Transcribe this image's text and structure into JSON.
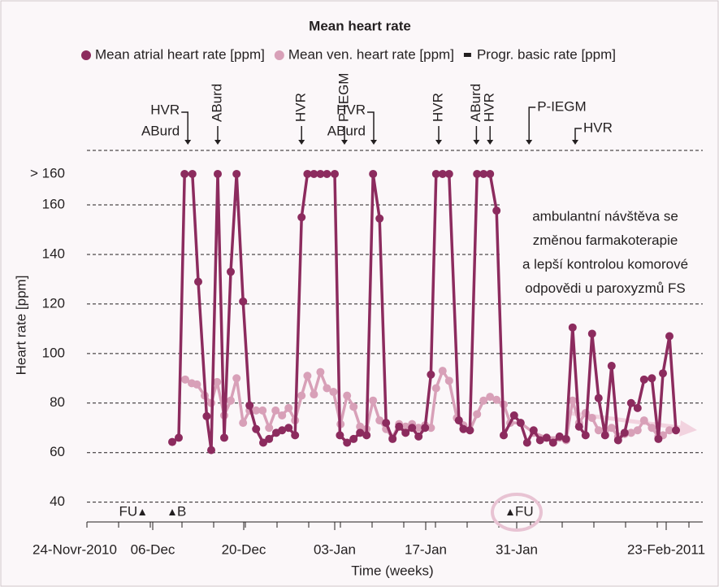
{
  "chart_data": {
    "type": "line",
    "title": "Mean heart rate",
    "y_label": "Heart rate [ppm]",
    "x_label": "Time (weeks)",
    "xlim": [
      0,
      97
    ],
    "ylim": [
      32,
      182
    ],
    "xticks": [
      {
        "value": 0,
        "label": "24-Novr-2010"
      },
      {
        "value": 12,
        "label": "06-Dec"
      },
      {
        "value": 26,
        "label": "20-Dec"
      },
      {
        "value": 40,
        "label": "03-Jan"
      },
      {
        "value": 54,
        "label": "17-Jan"
      },
      {
        "value": 68,
        "label": "31-Jan"
      },
      {
        "value": 91,
        "label": "23-Feb-2011"
      }
    ],
    "yticks": [
      40,
      60,
      80,
      100,
      120,
      140,
      160,
      {
        "value": 172.5,
        "label": "> 160"
      }
    ],
    "grid": true,
    "series": [
      {
        "name": "Mean atrial heart rate [ppm]",
        "color": "#8c2b5e",
        "x": [
          15,
          16,
          16.9,
          18.1,
          19,
          20.3,
          21,
          22,
          23,
          24,
          24.9,
          25.9,
          26.9,
          27.9,
          29,
          29.9,
          31,
          31.9,
          32.9,
          33.9,
          34.9,
          35.8,
          36.8,
          37.8,
          38.8,
          40,
          40.8,
          41.9,
          42.9,
          43.9,
          44.9,
          45.9,
          46.9,
          47.9,
          48.9,
          49.9,
          50.9,
          51.9,
          52.9,
          53.9,
          54.8,
          55.6,
          56.6,
          57.6,
          59.1,
          59.8,
          60.8,
          61.9,
          62.9,
          63.9,
          64.9,
          66,
          67.6,
          68.6,
          69.6,
          70.6,
          71.6,
          72.6,
          73.6,
          74.6,
          75.6,
          76.6,
          77.6,
          78.6,
          79.6,
          80.6,
          81.6,
          82.6,
          83.6,
          84.6,
          85.6,
          86.6,
          87.6,
          88.8,
          89.8,
          90.5,
          91.5,
          92.5
        ],
        "values": [
          64.3,
          66,
          172.5,
          172.5,
          129,
          74.7,
          61,
          172.5,
          66,
          133,
          172.5,
          121,
          79,
          69.5,
          64,
          65.5,
          68,
          69,
          70,
          67,
          155,
          172.5,
          172.5,
          172.5,
          172.5,
          172.5,
          67,
          64,
          65.5,
          68,
          67,
          172.5,
          154.5,
          72,
          65.5,
          70.5,
          68,
          70,
          66.5,
          70,
          91.5,
          172.5,
          172.5,
          172.5,
          73,
          69.5,
          69,
          172.5,
          172.5,
          172.5,
          157.7,
          67,
          75,
          72,
          64,
          69,
          65,
          66,
          64,
          66.5,
          65.5,
          110.5,
          70.5,
          67,
          108,
          82,
          67,
          95,
          65,
          68,
          80,
          78,
          89.5,
          90,
          65.5,
          92,
          107,
          69
        ]
      },
      {
        "name": "Mean ven. heart rate [ppm]",
        "color": "#d8a0b8",
        "x": [
          17,
          18,
          18.8,
          20,
          21,
          21.9,
          23,
          24,
          24.9,
          25.9,
          26.9,
          27.9,
          28.9,
          29.9,
          30.9,
          31.9,
          32.9,
          33.9,
          34.9,
          35.8,
          36.8,
          37.8,
          38.8,
          39.8,
          40.9,
          41.9,
          42.9,
          43.9,
          44.9,
          45.9,
          46.9,
          47.9,
          48.9,
          49.9,
          50.9,
          51.9,
          52.9,
          53.9,
          54.8,
          55.6,
          56.6,
          57.6,
          58.8,
          59.8,
          60.8,
          61.9,
          62.9,
          63.9,
          64.9,
          66,
          67,
          68.6,
          70.6,
          72.6,
          74.6,
          75.6,
          76.6,
          77.6,
          78.6,
          79.6,
          80.6,
          81.6,
          82.6,
          83.6,
          84.6,
          85.6,
          86.6,
          87.6,
          88.8,
          89.8,
          90.5,
          91.5,
          92.5
        ],
        "values": [
          89.5,
          88,
          87.5,
          83,
          80,
          88.5,
          75,
          81,
          90,
          72,
          77,
          77,
          77,
          70,
          77,
          75,
          78,
          73,
          83,
          91,
          83.5,
          92.5,
          86,
          84.5,
          71.5,
          83,
          78.5,
          70.5,
          69.5,
          81,
          73,
          69.5,
          66,
          71.5,
          70.5,
          71.5,
          70,
          71,
          70,
          86,
          93,
          89,
          74,
          71,
          69,
          75.5,
          81,
          82.5,
          81.3,
          79.4,
          72,
          72,
          68,
          66,
          66,
          65,
          81,
          72,
          76,
          74,
          69,
          69,
          70,
          66.5,
          67.5,
          68,
          69,
          73,
          70,
          66.5,
          67,
          69,
          69
        ]
      }
    ],
    "basic_rate_legend": "Progr. basic rate [ppm]",
    "events": [
      {
        "labels": [
          "HVR",
          "ABurd"
        ],
        "x": 17.4,
        "vertical": false
      },
      {
        "labels": [
          "ABurd"
        ],
        "x": 22,
        "vertical": true
      },
      {
        "labels": [
          "HVR"
        ],
        "x": 34.9,
        "vertical": true
      },
      {
        "labels": [
          "P-IEGM"
        ],
        "x": 41.5,
        "vertical": true
      },
      {
        "labels": [
          "HVR",
          "ABurd"
        ],
        "x": 46,
        "vertical": false
      },
      {
        "labels": [
          "HVR"
        ],
        "x": 56,
        "vertical": true
      },
      {
        "labels": [
          "ABurd"
        ],
        "x": 61.8,
        "vertical": true
      },
      {
        "labels": [
          "HVR"
        ],
        "x": 63.9,
        "vertical": true
      },
      {
        "labels": [
          "P-IEGM"
        ],
        "x": 69.9,
        "vertical": false
      },
      {
        "labels": [
          "HVR"
        ],
        "x": 77,
        "vertical": false
      }
    ],
    "markers": [
      {
        "label": "FU",
        "x": 10.4,
        "side": "left",
        "highlight": false
      },
      {
        "label": "B",
        "x": 15,
        "side": "right",
        "highlight": false
      },
      {
        "label": "FU",
        "x": 67,
        "side": "right",
        "highlight": true
      }
    ],
    "note": [
      "ambulantní návštěva se",
      "změnou farmakoterapie",
      "a lepší kontrolou komorové",
      "odpovědi u paroxyzmů FS"
    ]
  }
}
